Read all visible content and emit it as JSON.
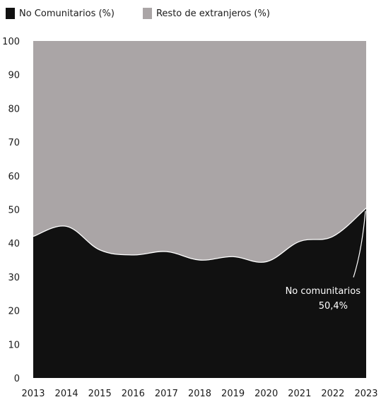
{
  "legend": {
    "items": [
      {
        "label": "No Comunitarios (%)",
        "color": "#111111"
      },
      {
        "label": "Resto de extranjeros (%)",
        "color": "#aaa5a6"
      }
    ]
  },
  "chart_data": {
    "type": "area",
    "stacked": true,
    "title": "",
    "xlabel": "",
    "ylabel": "",
    "x": [
      2013,
      2014,
      2015,
      2016,
      2017,
      2018,
      2019,
      2020,
      2021,
      2022,
      2023
    ],
    "ylim": [
      0,
      100
    ],
    "yticks": [
      0,
      10,
      20,
      30,
      40,
      50,
      60,
      70,
      80,
      90,
      100
    ],
    "grid": false,
    "legend_position": "top-left",
    "series": [
      {
        "name": "No Comunitarios (%)",
        "values": [
          42,
          45,
          38,
          36.5,
          37.5,
          35,
          36,
          34.5,
          40.5,
          42,
          50.4
        ],
        "color": "#111111"
      },
      {
        "name": "Resto de extranjeros (%)",
        "values": [
          58,
          55,
          62,
          63.5,
          62.5,
          65,
          64,
          65.5,
          59.5,
          58,
          49.6
        ],
        "color": "#aaa5a6"
      }
    ],
    "annotation": {
      "line1": "No comunitarios",
      "line2": "50,4%"
    }
  }
}
